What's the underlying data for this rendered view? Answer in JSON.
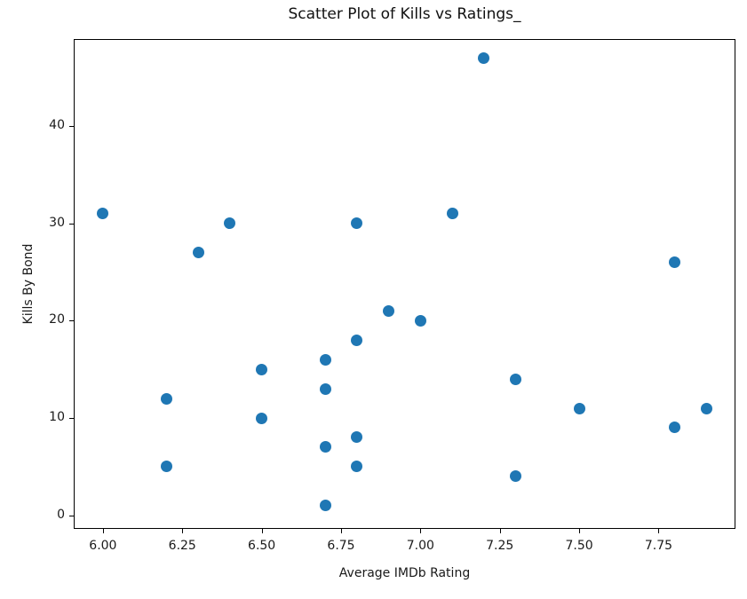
{
  "chart_data": {
    "type": "scatter",
    "title": "Scatter Plot of Kills vs Ratings_",
    "xlabel": "Average IMDb Rating",
    "ylabel": "Kills By Bond",
    "marker_color": "#1f77b4",
    "spine_color": "#000000",
    "grid": false,
    "xlim": [
      5.908,
      7.992
    ],
    "ylim": [
      -1.4,
      48.95
    ],
    "x_ticks": [
      6.0,
      6.25,
      6.5,
      6.75,
      7.0,
      7.25,
      7.5,
      7.75
    ],
    "x_tick_labels": [
      "6.00",
      "6.25",
      "6.50",
      "6.75",
      "7.00",
      "7.25",
      "7.50",
      "7.75"
    ],
    "y_ticks": [
      0,
      10,
      20,
      30,
      40
    ],
    "y_tick_labels": [
      "0",
      "10",
      "20",
      "30",
      "40"
    ],
    "points": [
      {
        "x": 6.0,
        "y": 31
      },
      {
        "x": 6.2,
        "y": 12
      },
      {
        "x": 6.2,
        "y": 5
      },
      {
        "x": 6.3,
        "y": 27
      },
      {
        "x": 6.4,
        "y": 30
      },
      {
        "x": 6.5,
        "y": 15
      },
      {
        "x": 6.5,
        "y": 10
      },
      {
        "x": 6.7,
        "y": 16
      },
      {
        "x": 6.7,
        "y": 13
      },
      {
        "x": 6.7,
        "y": 7
      },
      {
        "x": 6.7,
        "y": 1
      },
      {
        "x": 6.8,
        "y": 30
      },
      {
        "x": 6.8,
        "y": 18
      },
      {
        "x": 6.8,
        "y": 8
      },
      {
        "x": 6.8,
        "y": 5
      },
      {
        "x": 6.9,
        "y": 21
      },
      {
        "x": 7.0,
        "y": 20
      },
      {
        "x": 7.1,
        "y": 31
      },
      {
        "x": 7.2,
        "y": 47
      },
      {
        "x": 7.3,
        "y": 14
      },
      {
        "x": 7.3,
        "y": 4
      },
      {
        "x": 7.5,
        "y": 11
      },
      {
        "x": 7.8,
        "y": 26
      },
      {
        "x": 7.8,
        "y": 9
      },
      {
        "x": 7.9,
        "y": 11
      }
    ]
  }
}
